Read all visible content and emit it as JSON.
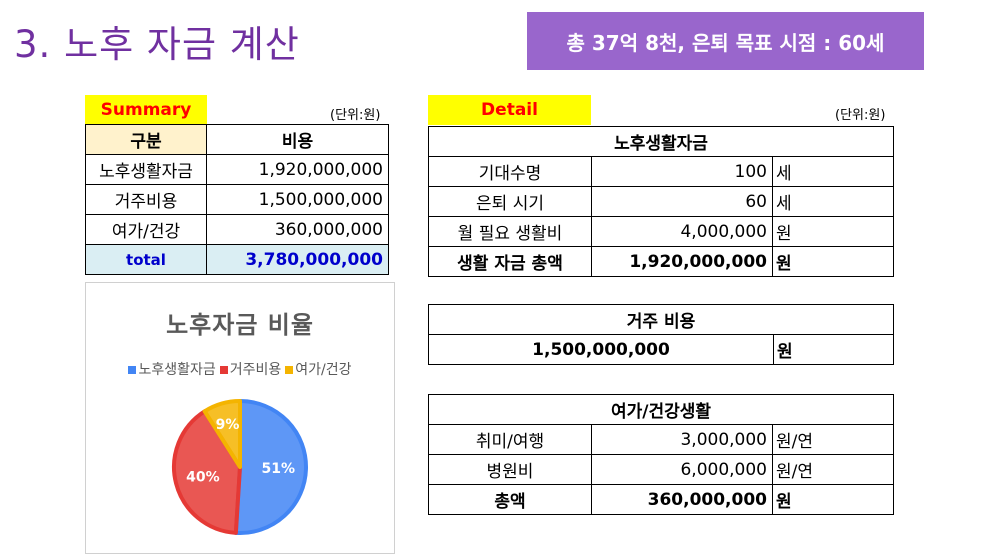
{
  "title": "3. 노후 자금 계산",
  "banner": "총 37억 8천, 은퇴 목표 시점  : 60세",
  "summary": {
    "label": "Summary",
    "unit_note": "(단위:원)",
    "header_col1": "구분",
    "header_col2": "비용",
    "rows": [
      {
        "name": "노후생활자금",
        "value": "1,920,000,000"
      },
      {
        "name": "거주비용",
        "value": "1,500,000,000"
      },
      {
        "name": "여가/건강",
        "value": "360,000,000"
      }
    ],
    "total_label": "total",
    "total_value": "3,780,000,000"
  },
  "detail": {
    "label": "Detail",
    "unit_note": "(단위:원)",
    "living": {
      "header": "노후생활자금",
      "rows": [
        {
          "name": "기대수명",
          "value": "100",
          "unit": "세"
        },
        {
          "name": "은퇴 시기",
          "value": "60",
          "unit": "세"
        },
        {
          "name": "월 필요 생활비",
          "value": "4,000,000",
          "unit": "원"
        }
      ],
      "total_name": "생활 자금 총액",
      "total_value": "1,920,000,000",
      "total_unit": "원"
    },
    "housing": {
      "header": "거주 비용",
      "value": "1,500,000,000",
      "unit": "원"
    },
    "leisure": {
      "header": "여가/건강생활",
      "rows": [
        {
          "name": "취미/여행",
          "value": "3,000,000",
          "unit": "원/연"
        },
        {
          "name": "병원비",
          "value": "6,000,000",
          "unit": "원/연"
        }
      ],
      "total_name": "총액",
      "total_value": "360,000,000",
      "total_unit": "원"
    }
  },
  "chart_data": {
    "type": "pie",
    "title": "노후자금 비율",
    "categories": [
      "노후생활자금",
      "거주비용",
      "여가/건강"
    ],
    "values": [
      51,
      40,
      9
    ],
    "labels": [
      "51%",
      "40%",
      "9%"
    ],
    "colors": [
      "#4285f4",
      "#e53935",
      "#f4b400"
    ],
    "legend_position": "top"
  }
}
